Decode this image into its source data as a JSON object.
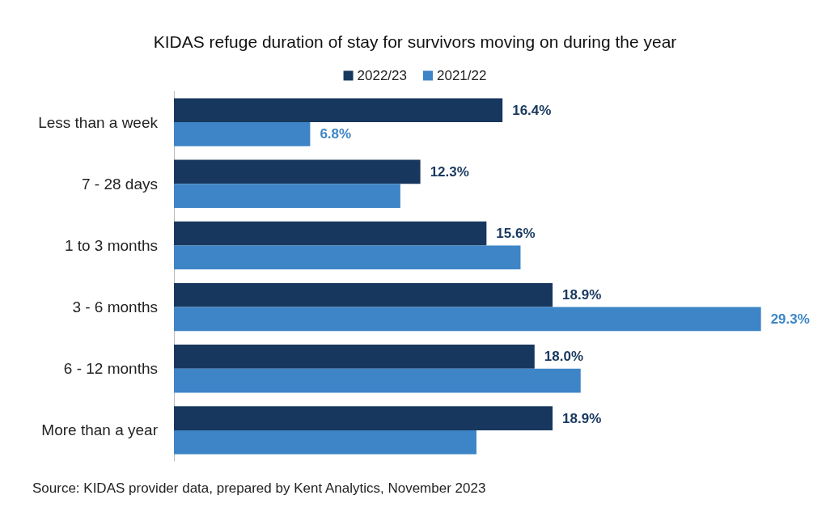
{
  "chart_data": {
    "type": "bar",
    "orientation": "horizontal",
    "title": "KIDAS refuge duration of stay for survivors moving on during the year",
    "categories": [
      "Less than a week",
      "7 - 28 days",
      "1 to 3 months",
      "3 - 6 months",
      "6 - 12 months",
      "More than a year"
    ],
    "series": [
      {
        "name": "2022/23",
        "color": "#17375e",
        "values": [
          16.4,
          12.3,
          15.6,
          18.9,
          18.0,
          18.9
        ],
        "value_labels": [
          "16.4%",
          "12.3%",
          "15.6%",
          "18.9%",
          "18.0%",
          "18.9%"
        ]
      },
      {
        "name": "2021/22",
        "color": "#3d85c6",
        "values": [
          6.8,
          11.3,
          17.3,
          29.3,
          20.3,
          15.1
        ],
        "value_labels": [
          "6.8%",
          null,
          null,
          "29.3%",
          null,
          null
        ]
      }
    ],
    "legend": "top",
    "grid": false,
    "annotations": [
      "Source: KIDAS provider data, prepared by Kent Analytics, November 2023"
    ]
  }
}
